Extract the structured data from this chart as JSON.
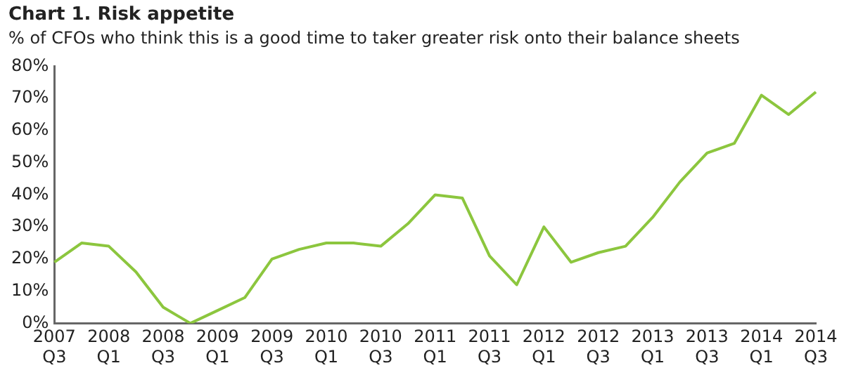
{
  "chart_data": {
    "type": "line",
    "title": "Chart 1. Risk appetite",
    "subtitle": "% of CFOs who think this is a good time to taker greater risk onto their balance sheets",
    "categories": [
      "2007 Q3",
      null,
      "2008 Q1",
      null,
      "2008 Q3",
      null,
      "2009 Q1",
      null,
      "2009 Q3",
      null,
      "2010 Q1",
      null,
      "2010 Q3",
      null,
      "2011 Q1",
      null,
      "2011 Q3",
      null,
      "2012 Q1",
      null,
      "2012 Q3",
      null,
      "2013 Q1",
      null,
      "2013 Q3",
      null,
      "2014 Q1",
      null,
      "2014 Q3"
    ],
    "series": [
      {
        "color": "#8cc63e",
        "values": [
          19,
          25,
          24,
          16,
          5,
          0,
          4,
          8,
          20,
          23,
          25,
          25,
          24,
          31,
          40,
          39,
          21,
          12,
          30,
          19,
          22,
          24,
          33,
          44,
          53,
          56,
          71,
          65,
          72
        ]
      }
    ],
    "ylim": [
      0,
      80
    ],
    "yticks": [
      {
        "value": 0,
        "label": "0%"
      },
      {
        "value": 10,
        "label": "10%"
      },
      {
        "value": 20,
        "label": "20%"
      },
      {
        "value": 30,
        "label": "30%"
      },
      {
        "value": 40,
        "label": "40%"
      },
      {
        "value": 50,
        "label": "50%"
      },
      {
        "value": 60,
        "label": "60%"
      },
      {
        "value": 70,
        "label": "70%"
      },
      {
        "value": 80,
        "label": "80%"
      }
    ],
    "grid": false,
    "legend": false,
    "marker": "none",
    "line_style": "solid"
  }
}
